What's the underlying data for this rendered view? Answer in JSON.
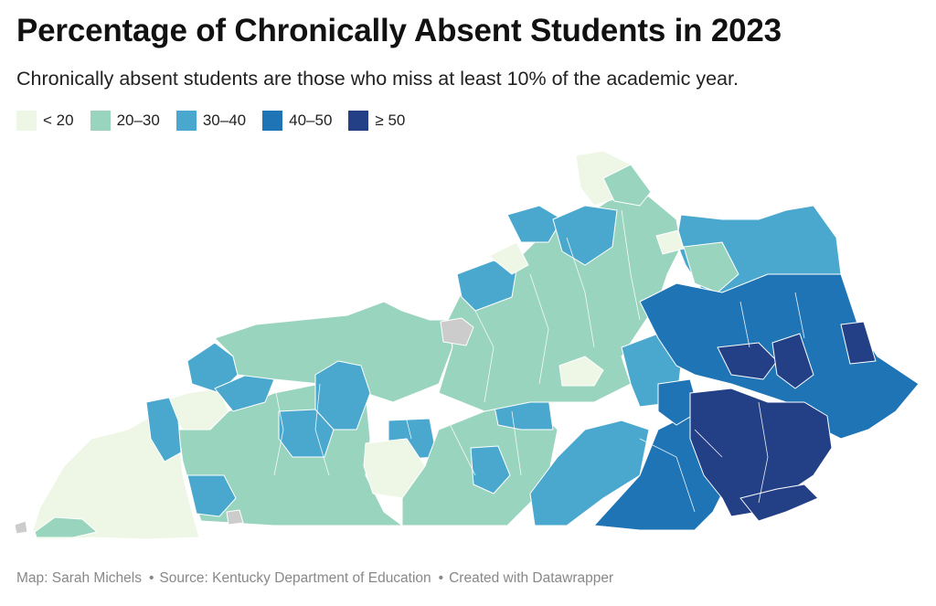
{
  "title": "Percentage of Chronically Absent Students in 2023",
  "subtitle": "Chronically absent students are those who miss at least 10% of the academic year.",
  "legend": [
    {
      "label": "< 20",
      "color": "#eef7e6"
    },
    {
      "label": "20–30",
      "color": "#99d4be"
    },
    {
      "label": "30–40",
      "color": "#4aa8cf"
    },
    {
      "label": "40–50",
      "color": "#1f74b6"
    },
    {
      "label": "≥ 50",
      "color": "#233f86"
    }
  ],
  "no_data_color": "#cccccc",
  "footer": {
    "map_credit": "Map: Sarah Michels",
    "source": "Source: Kentucky Department of Education",
    "tool": "Created with Datawrapper",
    "separator": "•"
  }
}
